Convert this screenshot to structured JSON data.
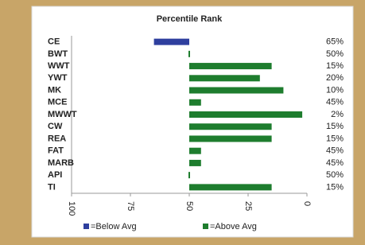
{
  "chart_data": {
    "type": "bar",
    "orientation": "horizontal",
    "title": "Percentile Rank",
    "categories": [
      "CE",
      "BWT",
      "WWT",
      "YWT",
      "MK",
      "MCE",
      "MWWT",
      "CW",
      "REA",
      "FAT",
      "MARB",
      "API",
      "TI"
    ],
    "series": [
      {
        "name": "=Below Avg",
        "color": "#2e3f9e",
        "values": [
          65,
          null,
          null,
          null,
          null,
          null,
          null,
          null,
          null,
          null,
          null,
          null,
          null
        ],
        "value_labels": [
          "65%",
          null,
          null,
          null,
          null,
          null,
          null,
          null,
          null,
          null,
          null,
          null,
          null
        ]
      },
      {
        "name": "=Above Avg",
        "color": "#1e7d2e",
        "values": [
          null,
          50,
          15,
          20,
          10,
          45,
          2,
          15,
          15,
          45,
          45,
          50,
          15
        ],
        "value_labels": [
          null,
          "50%",
          "15%",
          "20%",
          "10%",
          "45%",
          "2%",
          "15%",
          "15%",
          "45%",
          "45%",
          "50%",
          "15%"
        ]
      }
    ],
    "xlim": [
      100,
      0
    ],
    "xticks": [
      100,
      75,
      50,
      25,
      0
    ],
    "legend": "bottom"
  }
}
